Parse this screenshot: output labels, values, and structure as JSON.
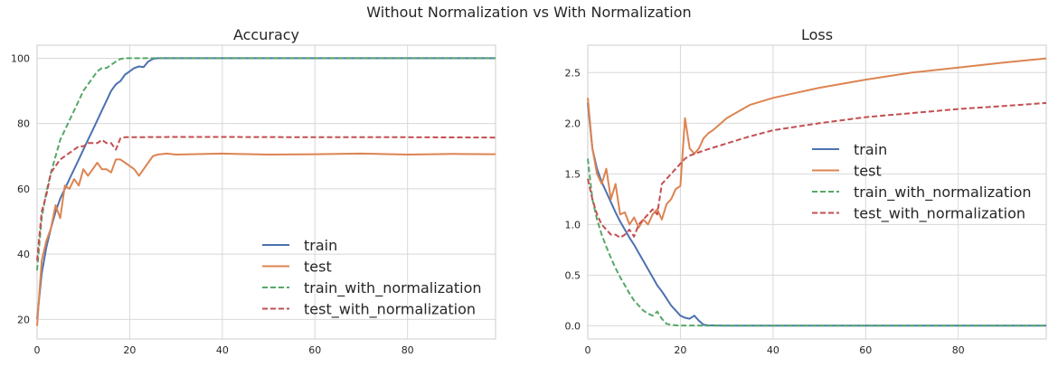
{
  "suptitle": "Without Normalization vs With Normalization",
  "chart_data": [
    {
      "type": "line",
      "title": "Accuracy",
      "xlabel": "",
      "ylabel": "",
      "xlim": [
        0,
        99
      ],
      "ylim": [
        14,
        104
      ],
      "xticks": [
        0,
        20,
        40,
        60,
        80
      ],
      "yticks": [
        20,
        40,
        60,
        80,
        100
      ],
      "grid": true,
      "legend": "lower-right",
      "series": [
        {
          "name": "train",
          "color": "#4c72b0",
          "dash": "solid",
          "x": [
            0,
            1,
            2,
            3,
            4,
            5,
            6,
            7,
            8,
            9,
            10,
            11,
            12,
            13,
            14,
            15,
            16,
            17,
            18,
            19,
            20,
            21,
            22,
            23,
            24,
            25,
            26,
            30,
            40,
            60,
            80,
            99
          ],
          "y": [
            20,
            34,
            42,
            48,
            53,
            57,
            60,
            63,
            66,
            69,
            72,
            75,
            78,
            81,
            84,
            87,
            90,
            92,
            93,
            95,
            96,
            97,
            97.5,
            97.3,
            99,
            99.8,
            100,
            100,
            100,
            100,
            100,
            100
          ]
        },
        {
          "name": "test",
          "color": "#dd8452",
          "dash": "solid",
          "x": [
            0,
            1,
            2,
            3,
            4,
            5,
            6,
            7,
            8,
            9,
            10,
            11,
            12,
            13,
            14,
            15,
            16,
            17,
            18,
            19,
            20,
            21,
            22,
            23,
            24,
            25,
            26,
            28,
            30,
            40,
            50,
            60,
            70,
            80,
            90,
            99
          ],
          "y": [
            18,
            38,
            44,
            48,
            55,
            51,
            61,
            60,
            63,
            61,
            66,
            64,
            66,
            68,
            66,
            66,
            65,
            69,
            69,
            68,
            67,
            66,
            64,
            66,
            68,
            70,
            70.5,
            70.8,
            70.5,
            70.8,
            70.5,
            70.6,
            70.8,
            70.5,
            70.7,
            70.6
          ]
        },
        {
          "name": "train_with_normalization",
          "color": "#55a868",
          "dash": "dashed",
          "x": [
            0,
            1,
            2,
            3,
            4,
            5,
            6,
            7,
            8,
            9,
            10,
            11,
            12,
            13,
            14,
            15,
            16,
            17,
            18,
            19,
            20,
            25,
            30,
            40,
            60,
            80,
            99
          ],
          "y": [
            35,
            51,
            59,
            65,
            70,
            75,
            78,
            81,
            84,
            87,
            90,
            92,
            94,
            96,
            97,
            97,
            98,
            99,
            99.8,
            100,
            100,
            100,
            100,
            100,
            100,
            100,
            100
          ]
        },
        {
          "name": "test_with_normalization",
          "color": "#c44e52",
          "dash": "dashed",
          "x": [
            0,
            1,
            2,
            3,
            4,
            5,
            6,
            7,
            8,
            9,
            10,
            11,
            12,
            13,
            14,
            15,
            16,
            17,
            18,
            19,
            20,
            30,
            40,
            60,
            80,
            99
          ],
          "y": [
            38,
            53,
            58,
            65,
            67,
            69,
            70,
            71,
            72,
            73,
            73,
            74,
            74,
            74,
            75,
            74,
            74,
            72,
            75.5,
            75.8,
            75.8,
            75.9,
            75.9,
            75.8,
            75.8,
            75.7
          ]
        }
      ]
    },
    {
      "type": "line",
      "title": "Loss",
      "xlabel": "",
      "ylabel": "",
      "xlim": [
        0,
        99
      ],
      "ylim": [
        -0.13,
        2.77
      ],
      "xticks": [
        0,
        20,
        40,
        60,
        80
      ],
      "yticks": [
        0.0,
        0.5,
        1.0,
        1.5,
        2.0,
        2.5
      ],
      "grid": true,
      "legend": "center-right",
      "series": [
        {
          "name": "train",
          "color": "#4c72b0",
          "dash": "solid",
          "x": [
            0,
            1,
            2,
            3,
            4,
            5,
            6,
            7,
            8,
            9,
            10,
            11,
            12,
            13,
            14,
            15,
            16,
            17,
            18,
            19,
            20,
            21,
            22,
            23,
            24,
            25,
            26,
            28,
            30,
            40,
            60,
            80,
            99
          ],
          "y": [
            2.2,
            1.75,
            1.55,
            1.42,
            1.32,
            1.22,
            1.12,
            1.03,
            0.95,
            0.87,
            0.8,
            0.72,
            0.64,
            0.56,
            0.48,
            0.4,
            0.34,
            0.27,
            0.2,
            0.15,
            0.1,
            0.08,
            0.07,
            0.1,
            0.05,
            0.01,
            0.005,
            0.003,
            0.002,
            0.001,
            0.001,
            0.001,
            0.001
          ]
        },
        {
          "name": "test",
          "color": "#dd8452",
          "dash": "solid",
          "x": [
            0,
            1,
            2,
            3,
            4,
            5,
            6,
            7,
            8,
            9,
            10,
            11,
            12,
            13,
            14,
            15,
            16,
            17,
            18,
            19,
            20,
            21,
            22,
            23,
            24,
            25,
            26,
            27,
            28,
            30,
            35,
            40,
            50,
            60,
            70,
            80,
            90,
            99
          ],
          "y": [
            2.25,
            1.75,
            1.5,
            1.4,
            1.55,
            1.25,
            1.4,
            1.1,
            1.12,
            1.0,
            1.07,
            0.97,
            1.05,
            1.0,
            1.1,
            1.15,
            1.05,
            1.2,
            1.25,
            1.35,
            1.38,
            2.05,
            1.75,
            1.7,
            1.75,
            1.85,
            1.9,
            1.93,
            1.97,
            2.05,
            2.18,
            2.25,
            2.35,
            2.43,
            2.5,
            2.55,
            2.6,
            2.64
          ]
        },
        {
          "name": "train_with_normalization",
          "color": "#55a868",
          "dash": "dashed",
          "x": [
            0,
            1,
            2,
            3,
            4,
            5,
            6,
            7,
            8,
            9,
            10,
            11,
            12,
            13,
            14,
            15,
            16,
            17,
            18,
            19,
            20,
            25,
            30,
            40,
            60,
            80,
            99
          ],
          "y": [
            1.65,
            1.25,
            1.05,
            0.9,
            0.78,
            0.67,
            0.57,
            0.48,
            0.4,
            0.32,
            0.25,
            0.2,
            0.15,
            0.12,
            0.1,
            0.14,
            0.07,
            0.02,
            0.01,
            0.005,
            0.003,
            0.002,
            0.001,
            0.001,
            0.001,
            0.001,
            0.001
          ]
        },
        {
          "name": "test_with_normalization",
          "color": "#c44e52",
          "dash": "dashed",
          "x": [
            0,
            1,
            2,
            3,
            4,
            5,
            6,
            7,
            8,
            9,
            10,
            11,
            12,
            13,
            14,
            15,
            16,
            17,
            18,
            19,
            20,
            21,
            22,
            25,
            30,
            35,
            40,
            50,
            60,
            70,
            80,
            90,
            99
          ],
          "y": [
            1.45,
            1.25,
            1.1,
            1.0,
            0.95,
            0.9,
            0.9,
            0.87,
            0.9,
            0.95,
            0.88,
            1.0,
            1.05,
            1.1,
            1.15,
            1.1,
            1.4,
            1.45,
            1.5,
            1.55,
            1.6,
            1.65,
            1.68,
            1.73,
            1.8,
            1.87,
            1.93,
            2.0,
            2.06,
            2.1,
            2.14,
            2.17,
            2.2
          ]
        }
      ]
    }
  ]
}
